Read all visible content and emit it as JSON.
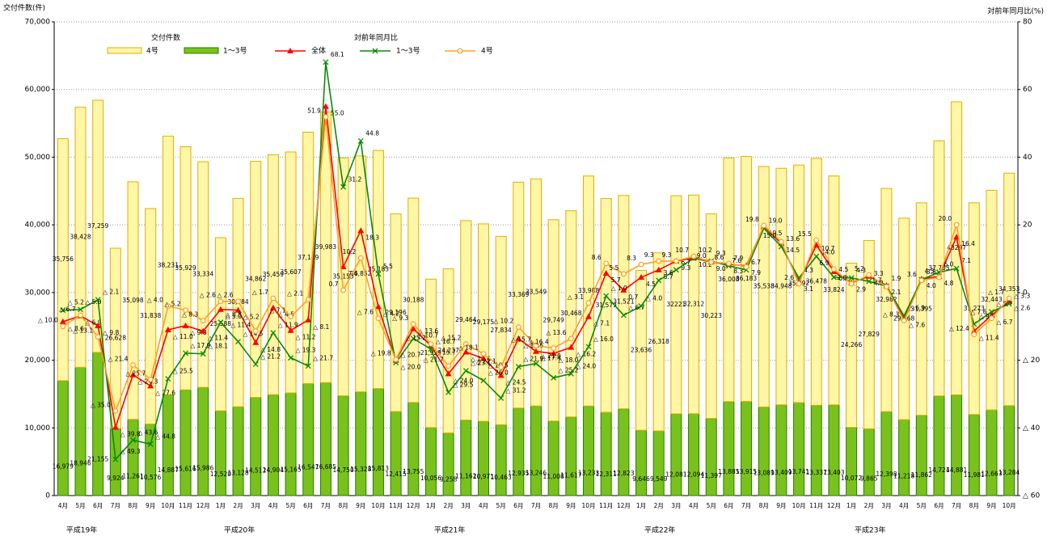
{
  "chart_data": {
    "type": "bar",
    "stacked": true,
    "y_axis_title": "交付件数(件)",
    "y2_axis_title": "対前年同月比(%)",
    "legend": {
      "bar_title": "交付件数",
      "line_title": "対前年同月比"
    },
    "categories": [
      "4月",
      "5月",
      "6月",
      "7月",
      "8月",
      "9月",
      "10月",
      "11月",
      "12月",
      "1月",
      "2月",
      "3月",
      "4月",
      "5月",
      "6月",
      "7月",
      "8月",
      "9月",
      "10月",
      "11月",
      "12月",
      "1月",
      "2月",
      "3月",
      "4月",
      "5月",
      "6月",
      "7月",
      "8月",
      "9月",
      "10月",
      "11月",
      "12月",
      "1月",
      "2月",
      "3月",
      "4月",
      "5月",
      "6月",
      "7月",
      "8月",
      "9月",
      "10月",
      "11月",
      "12月",
      "1月",
      "2月",
      "3月",
      "4月",
      "5月",
      "6月",
      "7月",
      "8月",
      "9月",
      "10月"
    ],
    "year_groups": [
      {
        "label": "平成19年",
        "span": 9
      },
      {
        "label": "平成20年",
        "span": 12
      },
      {
        "label": "平成21年",
        "span": 12
      },
      {
        "label": "平成22年",
        "span": 12
      },
      {
        "label": "平成23年",
        "span": 10
      }
    ],
    "ylim": [
      0,
      70000
    ],
    "yticks": [
      0,
      {
        "value": 10000,
        "label": "10,000"
      },
      {
        "value": 20000,
        "label": "20,000"
      },
      {
        "value": 30000,
        "label": "30,000"
      },
      {
        "value": 40000,
        "label": "40,000"
      },
      {
        "value": 50000,
        "label": "50,000"
      },
      {
        "value": 60000,
        "label": "60,000"
      },
      {
        "value": 70000,
        "label": "70,000"
      }
    ],
    "y2lim": [
      -60,
      80
    ],
    "y2ticks": [
      {
        "value": -60,
        "label": "△ 60"
      },
      {
        "value": -40,
        "label": "△ 40"
      },
      {
        "value": -20,
        "label": "△ 20"
      },
      0,
      20,
      40,
      60,
      80
    ],
    "grid": true,
    "series": [
      {
        "name": "1～3号",
        "type": "bar",
        "color": "#79c21c",
        "edge": "#2f7a00",
        "values": [
          16979,
          18946,
          21155,
          9924,
          11261,
          10576,
          14887,
          15616,
          15986,
          12520,
          13128,
          14512,
          14904,
          15165,
          16547,
          16685,
          14750,
          15328,
          15813,
          12415,
          13755,
          10056,
          9258,
          11162,
          10971,
          10463,
          12935,
          13246,
          11008,
          11617,
          13233,
          12311,
          12823,
          9646,
          9549,
          12081,
          12094,
          11397,
          13885,
          13915,
          13089,
          13409,
          13741,
          13337,
          13403,
          10072,
          9865,
          12398,
          11218,
          11862,
          14724,
          14881,
          11981,
          12663,
          13284
        ],
        "value_labels": [
          "16,979",
          "18,946",
          "21,155",
          "9,924",
          "11,261",
          "10,576",
          "14,887",
          "15,616",
          "15,986",
          "12,520",
          "13,128",
          "14,512",
          "14,904",
          "15,165",
          "16,547",
          "16,685",
          "14,750",
          "15,328",
          "15,813",
          "12,415",
          "13,755",
          "10,056",
          "9,258",
          "11,162",
          "10,971",
          "10,463",
          "12,935",
          "13,246",
          "11,008",
          "11,617",
          "13,233",
          "12,311",
          "12,823",
          "9,646",
          "9,549",
          "12,081",
          "12,094",
          "11,397",
          "13,885",
          "13,915",
          "13,089",
          "13,409",
          "13,741",
          "13,337",
          "13,403",
          "10,072",
          "9,865",
          "12,398",
          "11,218",
          "11,862",
          "14,724",
          "14,881",
          "11,981",
          "12,663",
          "13,284"
        ]
      },
      {
        "name": "4号",
        "type": "bar",
        "color": "#fff6a6",
        "edge": "#e0b000",
        "values": [
          35756,
          38428,
          37259,
          26628,
          35098,
          31838,
          38231,
          35929,
          33334,
          25588,
          30784,
          34862,
          35459,
          35607,
          37149,
          39983,
          35155,
          34852,
          35183,
          29196,
          30188,
          21923,
          24237,
          29464,
          29175,
          27834,
          33369,
          33549,
          29749,
          30468,
          33988,
          31579,
          31521,
          23636,
          26318,
          32221,
          32312,
          30223,
          36008,
          36183,
          35538,
          34948,
          35092,
          36478,
          33824,
          24266,
          27829,
          32982,
          29768,
          31395,
          37705,
          43297,
          31273,
          32443,
          34353
        ],
        "value_labels": [
          "35,756",
          "38,428",
          "37,259",
          "26,628",
          "35,098",
          "31,838",
          "38,231",
          "35,929",
          "33,334",
          "25,588",
          "30,784",
          "34,862",
          "35,459",
          "35,607",
          "37,149",
          "39,983",
          "35,155",
          "34,852",
          "35,183",
          "29,196",
          "30,188",
          "21,923",
          "24,237",
          "29,464",
          "29,175",
          "27,834",
          "33,369",
          "33,549",
          "29,749",
          "30,468",
          "33,988",
          "31,579",
          "31,521",
          "23,636",
          "26,318",
          "32221",
          "32,312",
          "30,223",
          "36,008",
          "36,183",
          "35,538",
          "34,948",
          "35,092",
          "36,478",
          "33,824",
          "24,266",
          "27,829",
          "32,982",
          "29,768",
          "31,395",
          "37,705",
          "43297",
          "31,273",
          "32,443",
          "34,353"
        ]
      },
      {
        "name": "全体",
        "type": "line",
        "axis": "y2",
        "color": "#ff0000",
        "marker": "triangle",
        "values": [
          -8.6,
          -6.9,
          -9.8,
          -39.8,
          -24.3,
          -27.6,
          -11,
          -9.8,
          -11.4,
          -5,
          -5.2,
          -14.8,
          -4.5,
          -11.2,
          -8.1,
          55,
          7.6,
          18.3,
          -4.2,
          -20,
          -10.7,
          -15.7,
          -24,
          -17.6,
          -19.5,
          -24.5,
          -13.6,
          -17.4,
          -18,
          -16.2,
          -7.1,
          5.7,
          0.7,
          4.5,
          6.7,
          9.3,
          10.2,
          9,
          8.3,
          7.9,
          19.5,
          14.5,
          3.1,
          14,
          6.2,
          2.9,
          4.8,
          2.1,
          -7.6,
          4,
          4.8,
          16.4,
          -11.4,
          -6.7,
          -2.6
        ],
        "value_labels": [
          "△ 8.6",
          "△ 6.9",
          "△ 9.8",
          "△ 39.8",
          "△ 24.3",
          "△ 27.6",
          "△ 11.0",
          "△ 9.8",
          "△ 11.4",
          "△ 5.0",
          "△ 5.2",
          "△ 14.8",
          "△ 4.5",
          "△ 11.2",
          "△ 8.1",
          "55.0",
          "7.6",
          "18.3",
          "△ 4.2",
          "△ 20.0",
          "△ 10.7",
          "△ 15.7",
          "△ 24.0",
          "△ 17.6",
          "△ 19.5",
          "△ 24.5",
          "△ 13.6",
          "△ 17.4",
          "△ 18.0",
          "△ 16.2",
          "△ 7.1",
          "5.7",
          "0.7",
          "4.5",
          "6.7",
          "9.3",
          "10.2",
          "9.0",
          "8.3",
          "7.9",
          "19.5",
          "14.5",
          "3.1",
          "14.0",
          "6.2",
          "2.9",
          "4.8",
          "2.1",
          "△ 7.6",
          "4.0",
          "4.8",
          "16.4",
          "△ 11.4",
          "△ 6.7",
          "△ 2.6"
        ]
      },
      {
        "name": "1～3号",
        "type": "line",
        "axis": "y2",
        "color": "#0a8a0a",
        "marker": "cross",
        "values": [
          -5.2,
          -5,
          -2.1,
          -49.3,
          -43.6,
          -44.8,
          -25.5,
          -17.9,
          -18.1,
          -8.8,
          -14.5,
          -21.2,
          -11.9,
          -19.3,
          -21.7,
          68.1,
          31.2,
          44.8,
          5.5,
          -20.7,
          -13.6,
          -16.7,
          -29.5,
          -23.1,
          -26,
          -31.2,
          -21.9,
          -21,
          -25.2,
          -24,
          -16,
          -1,
          -6.7,
          -4,
          3.6,
          6.7,
          10.2,
          9.3,
          7.9,
          6.7,
          19,
          13.6,
          4.3,
          10.7,
          4.5,
          4.3,
          3.3,
          1.9,
          -6.9,
          3.8,
          6,
          7.1,
          -9.3,
          -5.7,
          -3.3
        ],
        "value_labels": [
          "△ 5.2",
          "△ 5.0",
          "△ 2.1",
          "△ 49.3",
          "△ 43.6",
          "△ 44.8",
          "△ 25.5",
          "△ 17.9",
          "△ 18.1",
          "△ 8.8",
          "△ 14.5",
          "△ 21.2",
          "△ 11.9",
          "△ 19.3",
          "△ 21.7",
          "68.1",
          "31.2",
          "44.8",
          "5.5",
          "△ 20.7",
          "△ 13.6",
          "△ 16.7",
          "△ 29.5",
          "△ 23.1",
          "△ 26.0",
          "△ 31.2",
          "△ 21.9",
          "△ 21.0",
          "△ 25.2",
          "△ 24.0",
          "△ 16.0",
          "△ 1.0",
          "△ 6.7",
          "△ 4.0",
          "3.6",
          "6.7",
          "10.2",
          "9.3",
          "7.9",
          "6.7",
          "19.0",
          "13.6",
          "4.3",
          "10.7",
          "4.5",
          "4.3",
          "3.3",
          "1.9",
          "△ 6.9",
          "3.8",
          "6.0",
          "7.1",
          "△ 9.3",
          "△ 5.7",
          "△ 3.3"
        ]
      },
      {
        "name": "4号",
        "type": "line",
        "axis": "y2",
        "color": "#ffa020",
        "marker": "circle",
        "values": [
          -10,
          -6.7,
          -13.1,
          -35,
          -21.4,
          -25.7,
          -4,
          -5.2,
          -8.3,
          -2.6,
          -2.6,
          -11.4,
          -1.7,
          -7.1,
          -2.1,
          51.9,
          0.7,
          10.2,
          -7.6,
          -19.8,
          -9.3,
          -15.2,
          -21.7,
          -15.2,
          -18.1,
          -22.1,
          -10.2,
          -15.7,
          -16.4,
          -13.6,
          -3.1,
          8.6,
          5.5,
          8.3,
          9.3,
          9.3,
          10.7,
          9,
          8.6,
          7.6,
          19.8,
          15,
          2.6,
          15.5,
          6.9,
          2.6,
          5.2,
          1.7,
          -8.3,
          3.6,
          4.5,
          20,
          -12.4,
          -7.6,
          -1.7
        ],
        "value_labels": [
          "△ 10.0",
          "△ 6.7",
          "△ 13.1",
          "△ 35.0",
          "△ 21.4",
          "△ 25.7",
          "△ 4.0",
          "△ 5.2",
          "△ 8.3",
          "△ 2.6",
          "△ 2.6",
          "△ 11.4",
          "△ 1.7",
          "△ 7.1",
          "△ 2.1",
          "51.9",
          "0.7",
          "10.2",
          "△ 7.6",
          "△ 19.8",
          "△ 9.3",
          "△ 15.2",
          "△ 21.7",
          "△ 15.2",
          "△ 18.1",
          "△ 22.1",
          "△ 10.2",
          "△ 15.7",
          "△ 16.4",
          "△ 13.6",
          "△ 3.1",
          "8.6",
          "5.5",
          "8.3",
          "9.3",
          "9.3",
          "10.7",
          "9.0",
          "8.6",
          "7.6",
          "19.8",
          "15.0",
          "2.6",
          "15.5",
          "6.9",
          "2.6",
          "5.2",
          "1.7",
          "△ 8.3",
          "3.6",
          "4.5",
          "20.0",
          "△ 12.4",
          "△ 7.6",
          "△ 1.7"
        ]
      }
    ]
  }
}
